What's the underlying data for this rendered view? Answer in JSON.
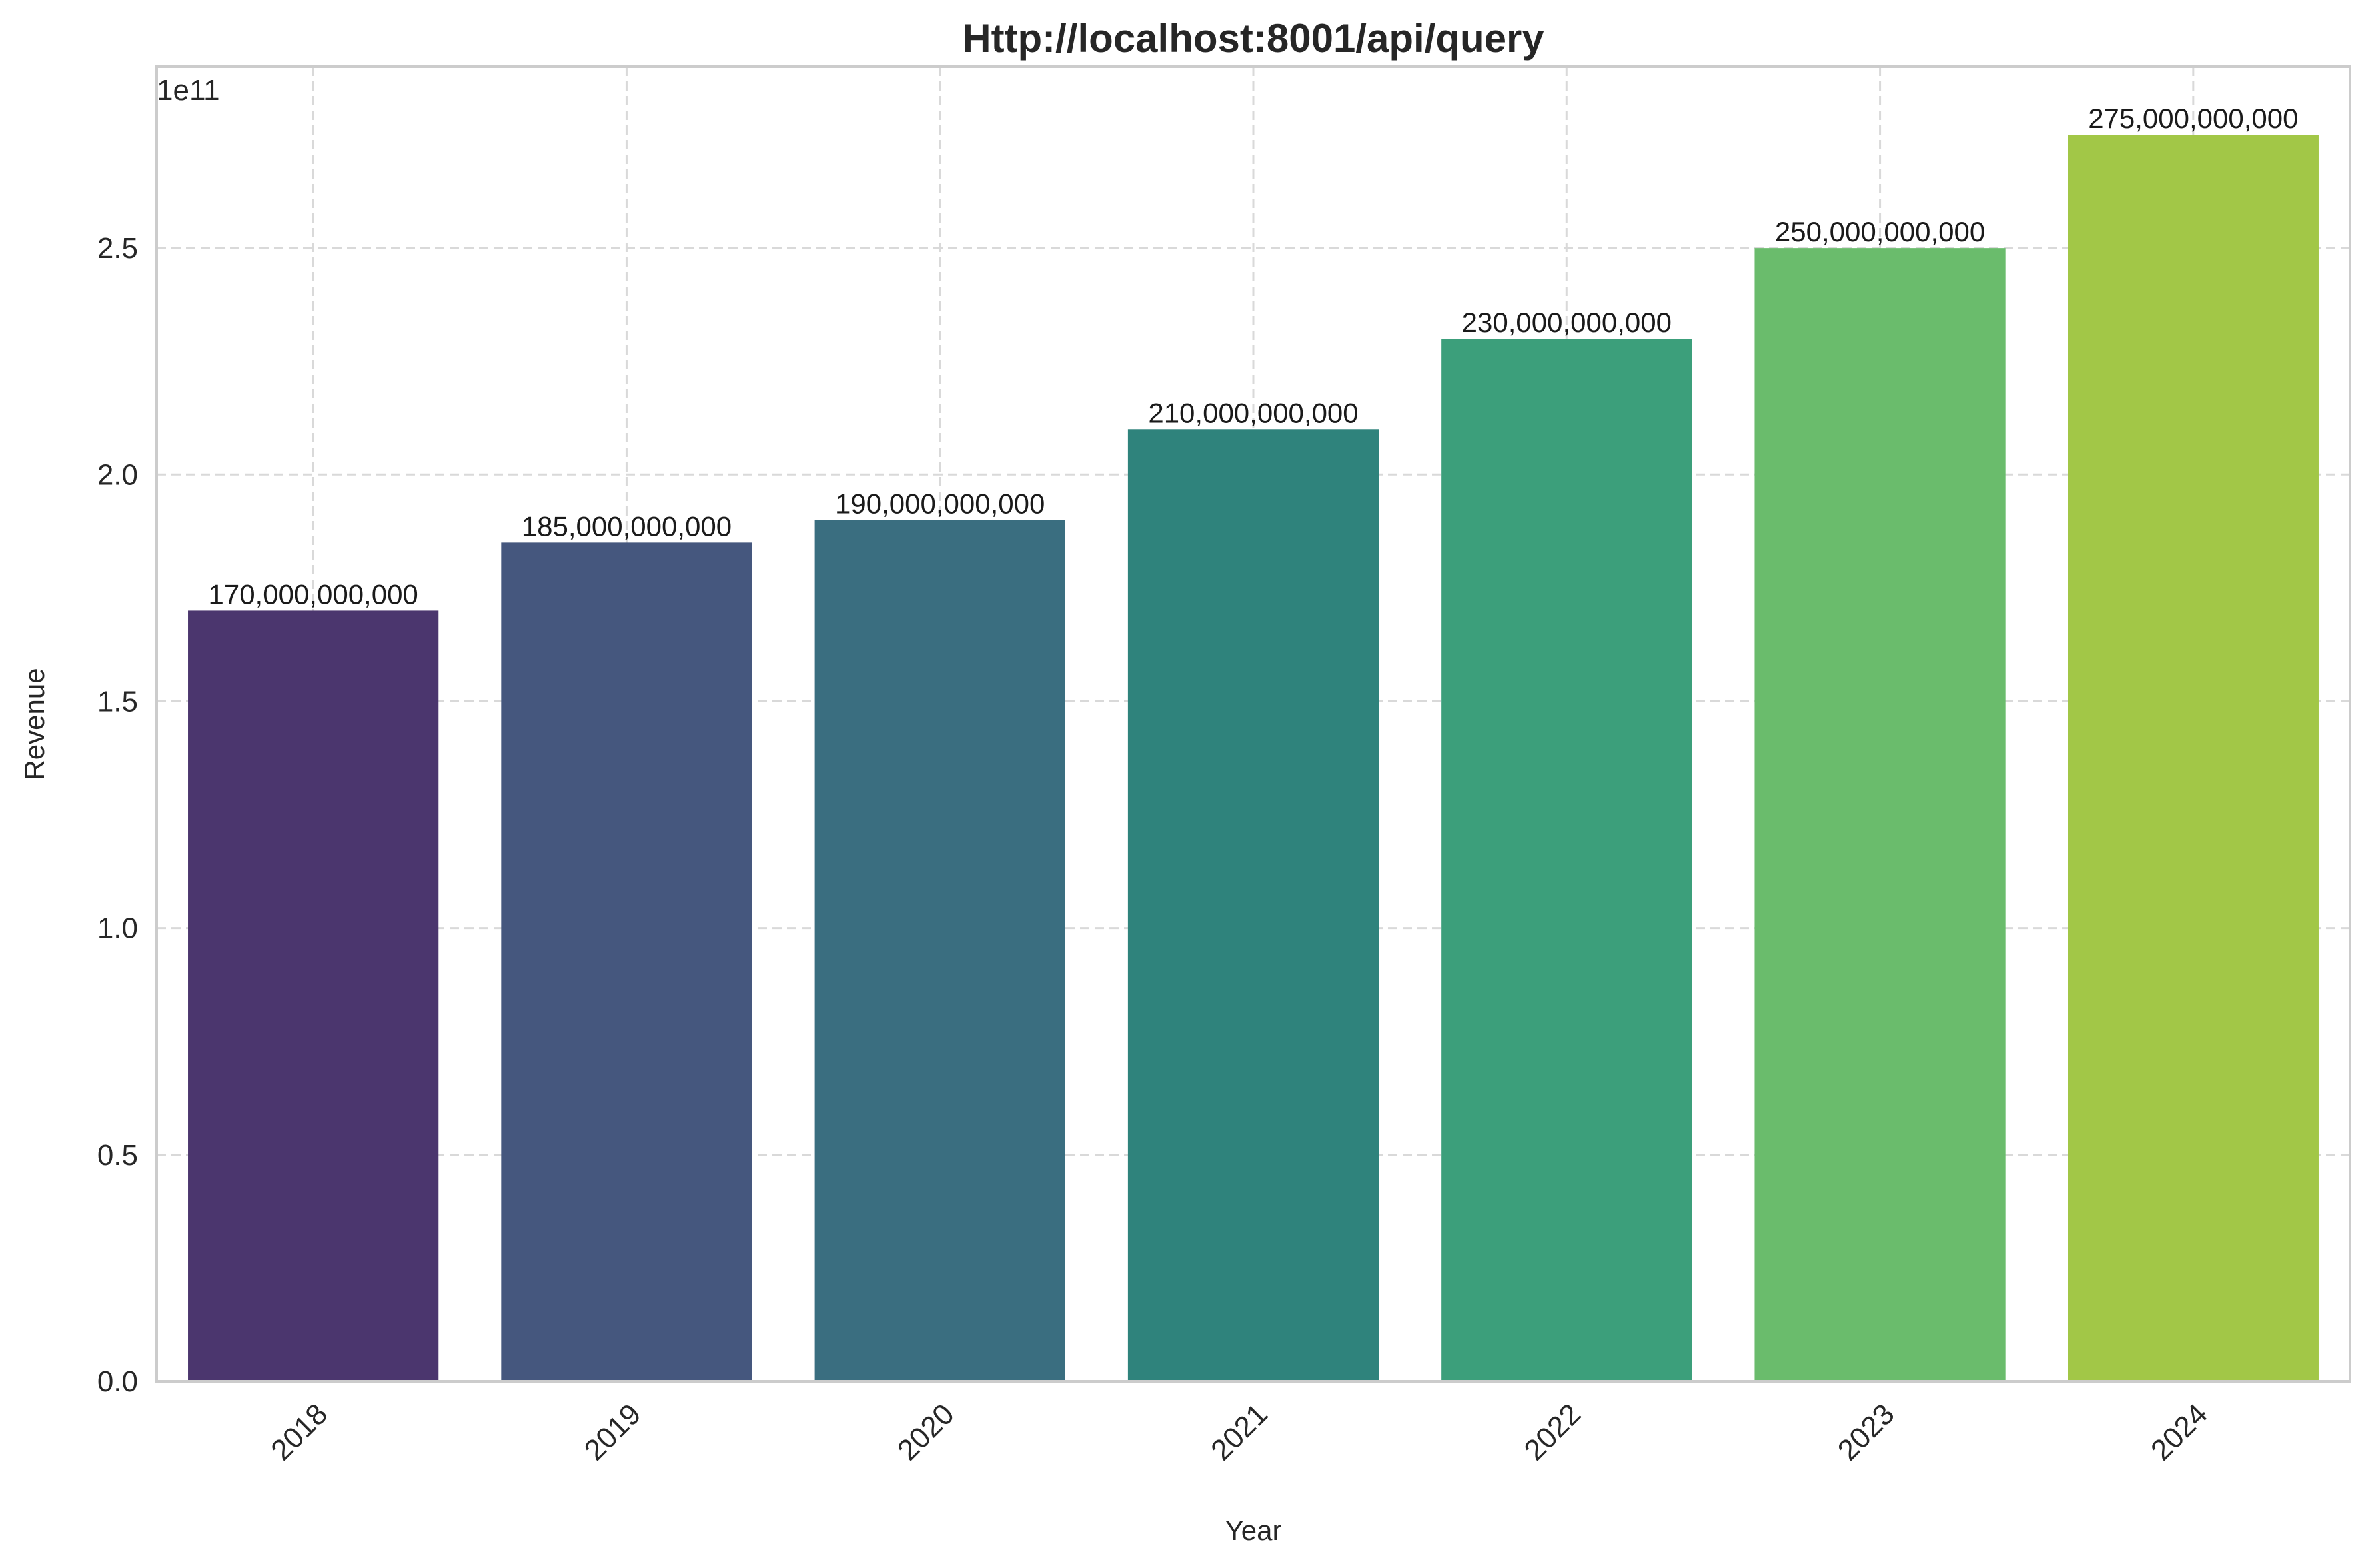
{
  "chart_data": {
    "type": "bar",
    "title": "Http://localhost:8001/api/query",
    "xlabel": "Year",
    "ylabel": "Revenue",
    "offset_label": "1e11",
    "categories": [
      "2018",
      "2019",
      "2020",
      "2021",
      "2022",
      "2023",
      "2024"
    ],
    "values": [
      170000000000,
      185000000000,
      190000000000,
      210000000000,
      230000000000,
      250000000000,
      275000000000
    ],
    "value_labels": [
      "170,000,000,000",
      "185,000,000,000",
      "190,000,000,000",
      "210,000,000,000",
      "230,000,000,000",
      "250,000,000,000",
      "275,000,000,000"
    ],
    "colors": [
      "#4b366e",
      "#45577e",
      "#3a6e80",
      "#2f837c",
      "#3c9f7b",
      "#6abc6c",
      "#a2c747"
    ],
    "ylim": [
      0,
      290000000000
    ],
    "yticks": [
      0,
      50000000000,
      100000000000,
      150000000000,
      200000000000,
      250000000000
    ],
    "ytick_labels": [
      "0.0",
      "0.5",
      "1.0",
      "1.5",
      "2.0",
      "2.5"
    ],
    "grid": true
  }
}
